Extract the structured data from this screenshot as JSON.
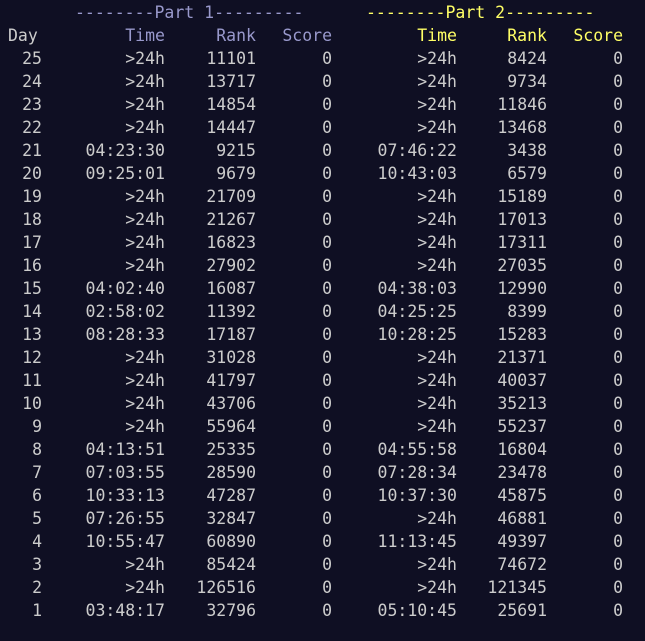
{
  "colors": {
    "background": "#0f0f23",
    "text": "#cccccc",
    "part1": "#9999cc",
    "part2": "#ffff66"
  },
  "header": {
    "part1_banner": "--------Part 1---------",
    "part2_banner": "--------Part 2---------",
    "day_label": "Day",
    "time_label": "Time",
    "rank_label": "Rank",
    "score_label": "Score"
  },
  "rows": [
    {
      "day": "25",
      "t1": ">24h",
      "r1": "11101",
      "s1": "0",
      "t2": ">24h",
      "r2": "8424",
      "s2": "0"
    },
    {
      "day": "24",
      "t1": ">24h",
      "r1": "13717",
      "s1": "0",
      "t2": ">24h",
      "r2": "9734",
      "s2": "0"
    },
    {
      "day": "23",
      "t1": ">24h",
      "r1": "14854",
      "s1": "0",
      "t2": ">24h",
      "r2": "11846",
      "s2": "0"
    },
    {
      "day": "22",
      "t1": ">24h",
      "r1": "14447",
      "s1": "0",
      "t2": ">24h",
      "r2": "13468",
      "s2": "0"
    },
    {
      "day": "21",
      "t1": "04:23:30",
      "r1": "9215",
      "s1": "0",
      "t2": "07:46:22",
      "r2": "3438",
      "s2": "0"
    },
    {
      "day": "20",
      "t1": "09:25:01",
      "r1": "9679",
      "s1": "0",
      "t2": "10:43:03",
      "r2": "6579",
      "s2": "0"
    },
    {
      "day": "19",
      "t1": ">24h",
      "r1": "21709",
      "s1": "0",
      "t2": ">24h",
      "r2": "15189",
      "s2": "0"
    },
    {
      "day": "18",
      "t1": ">24h",
      "r1": "21267",
      "s1": "0",
      "t2": ">24h",
      "r2": "17013",
      "s2": "0"
    },
    {
      "day": "17",
      "t1": ">24h",
      "r1": "16823",
      "s1": "0",
      "t2": ">24h",
      "r2": "17311",
      "s2": "0"
    },
    {
      "day": "16",
      "t1": ">24h",
      "r1": "27902",
      "s1": "0",
      "t2": ">24h",
      "r2": "27035",
      "s2": "0"
    },
    {
      "day": "15",
      "t1": "04:02:40",
      "r1": "16087",
      "s1": "0",
      "t2": "04:38:03",
      "r2": "12990",
      "s2": "0"
    },
    {
      "day": "14",
      "t1": "02:58:02",
      "r1": "11392",
      "s1": "0",
      "t2": "04:25:25",
      "r2": "8399",
      "s2": "0"
    },
    {
      "day": "13",
      "t1": "08:28:33",
      "r1": "17187",
      "s1": "0",
      "t2": "10:28:25",
      "r2": "15283",
      "s2": "0"
    },
    {
      "day": "12",
      "t1": ">24h",
      "r1": "31028",
      "s1": "0",
      "t2": ">24h",
      "r2": "21371",
      "s2": "0"
    },
    {
      "day": "11",
      "t1": ">24h",
      "r1": "41797",
      "s1": "0",
      "t2": ">24h",
      "r2": "40037",
      "s2": "0"
    },
    {
      "day": "10",
      "t1": ">24h",
      "r1": "43706",
      "s1": "0",
      "t2": ">24h",
      "r2": "35213",
      "s2": "0"
    },
    {
      "day": "9",
      "t1": ">24h",
      "r1": "55964",
      "s1": "0",
      "t2": ">24h",
      "r2": "55237",
      "s2": "0"
    },
    {
      "day": "8",
      "t1": "04:13:51",
      "r1": "25335",
      "s1": "0",
      "t2": "04:55:58",
      "r2": "16804",
      "s2": "0"
    },
    {
      "day": "7",
      "t1": "07:03:55",
      "r1": "28590",
      "s1": "0",
      "t2": "07:28:34",
      "r2": "23478",
      "s2": "0"
    },
    {
      "day": "6",
      "t1": "10:33:13",
      "r1": "47287",
      "s1": "0",
      "t2": "10:37:30",
      "r2": "45875",
      "s2": "0"
    },
    {
      "day": "5",
      "t1": "07:26:55",
      "r1": "32847",
      "s1": "0",
      "t2": ">24h",
      "r2": "46881",
      "s2": "0"
    },
    {
      "day": "4",
      "t1": "10:55:47",
      "r1": "60890",
      "s1": "0",
      "t2": "11:13:45",
      "r2": "49397",
      "s2": "0"
    },
    {
      "day": "3",
      "t1": ">24h",
      "r1": "85424",
      "s1": "0",
      "t2": ">24h",
      "r2": "74672",
      "s2": "0"
    },
    {
      "day": "2",
      "t1": ">24h",
      "r1": "126516",
      "s1": "0",
      "t2": ">24h",
      "r2": "121345",
      "s2": "0"
    },
    {
      "day": "1",
      "t1": "03:48:17",
      "r1": "32796",
      "s1": "0",
      "t2": "05:10:45",
      "r2": "25691",
      "s2": "0"
    }
  ]
}
